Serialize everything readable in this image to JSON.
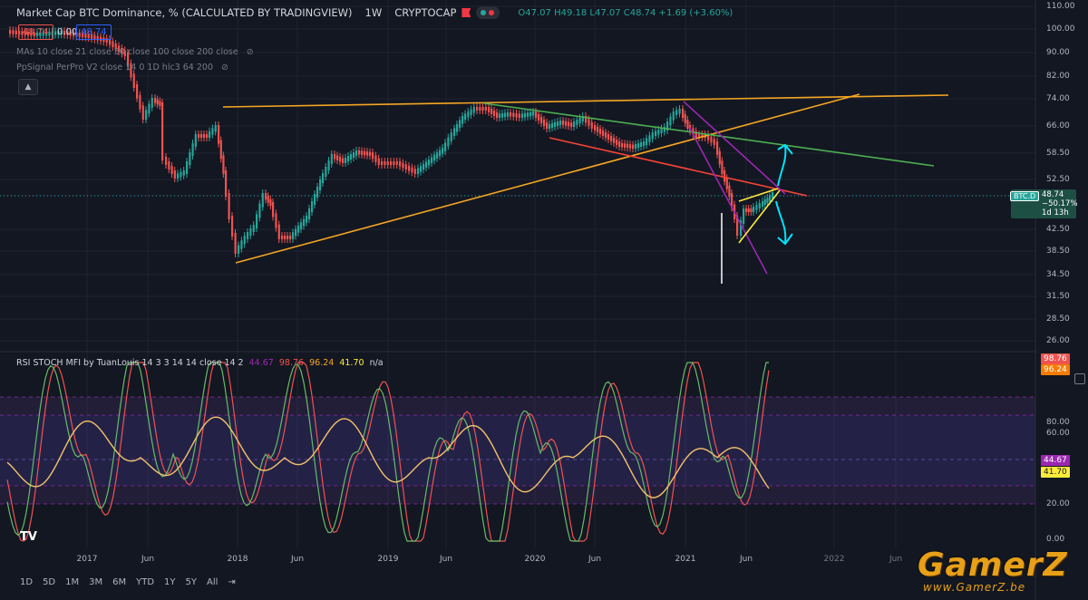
{
  "header": {
    "title": "Market Cap BTC Dominance, % (CALCULATED BY TRADINGVIEW)",
    "interval": "1W",
    "exchange": "CRYPTOCAP",
    "ohlc": "O47.07 H49.18 L47.07 C48.74 +1.69 (+3.60%)"
  },
  "price_boxes": {
    "sell": "48.74",
    "spread": "0.00",
    "buy": "48.74"
  },
  "indicators": {
    "mas": "MAs 10 close 21 close 50 close 100 close 200 close",
    "ppsignal": "PpSignal PerPro V2 close 14 0 1D hlc3 64 200"
  },
  "rsi_panel": {
    "title": "RSI STOCH MFI by TuanLouis 14 3 3 14 14 close 14 2",
    "v1": "44.67",
    "v2": "98.76",
    "v3": "96.24",
    "v4": "41.70",
    "na": "n/a"
  },
  "price_axis": [
    "110.00",
    "100.00",
    "90.00",
    "82.00",
    "74.00",
    "66.00",
    "58.50",
    "52.50",
    "47.50",
    "42.50",
    "38.50",
    "34.50",
    "31.50",
    "28.50",
    "26.00"
  ],
  "rsi_axis": [
    "80.00",
    "60.00",
    "40.00",
    "20.00",
    "0.00"
  ],
  "time_axis": [
    "2017",
    "Jun",
    "2018",
    "Jun",
    "2019",
    "Jun",
    "2020",
    "Jun",
    "2021",
    "Jun",
    "2022",
    "Jun"
  ],
  "last_price": {
    "symbol": "BTC.D",
    "value": "48.74",
    "change": "−50.17%",
    "countdown": "1d 13h"
  },
  "rsi_tags": [
    "98.76",
    "96.24",
    "44.67",
    "41.70"
  ],
  "periods": [
    "1D",
    "5D",
    "1M",
    "3M",
    "6M",
    "YTD",
    "1Y",
    "5Y",
    "All"
  ],
  "watermark": {
    "logo": "GamerZ",
    "url": "www.GamerZ.be"
  },
  "colors": {
    "up": "#26a69a",
    "down": "#ef5350",
    "orange": "#f5a623",
    "green": "#4caf50",
    "red": "#f44336",
    "purple": "#9c27b0",
    "yellow": "#ffeb3b",
    "cyan": "#00e5ff"
  }
}
